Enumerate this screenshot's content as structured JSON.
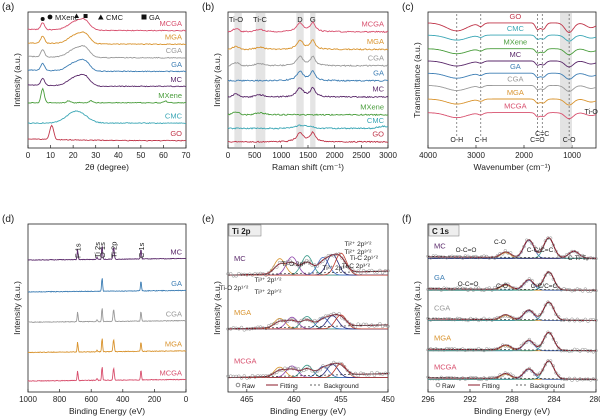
{
  "colors": {
    "GO": "#c0364a",
    "CMC": "#3aa6b5",
    "MXene": "#4a9d3c",
    "MC": "#5b2a6b",
    "GA": "#3f7fb5",
    "CGA": "#9a9a9a",
    "MGA": "#d9942f",
    "MCGA": "#d8506e",
    "raw": "#8a8a8a",
    "fit_main": "#8b1a2a",
    "bg": "#333333",
    "cmp1": "#d9952f",
    "cmp2": "#8e44ad",
    "cmp3": "#3a9a8a",
    "cmp4": "#3f6ec8",
    "cmp5": "#2b2b7a",
    "cmp6": "#c0392b"
  },
  "chart_data": [
    {
      "id": "a",
      "type": "line",
      "panel_label": "(a)",
      "xlabel": "2θ (degree)",
      "ylabel": "Intensity (a.u.)",
      "xlim": [
        0,
        70
      ],
      "xticks": [
        0,
        10,
        20,
        30,
        40,
        50,
        60,
        70
      ],
      "legend": [
        "MXene",
        "CMC",
        "GA"
      ],
      "series": [
        {
          "name": "MCGA",
          "base": 0.86
        },
        {
          "name": "MGA",
          "base": 0.76
        },
        {
          "name": "CGA",
          "base": 0.66
        },
        {
          "name": "GA",
          "base": 0.56
        },
        {
          "name": "MC",
          "base": 0.45
        },
        {
          "name": "MXene",
          "base": 0.33
        },
        {
          "name": "CMC",
          "base": 0.18
        },
        {
          "name": "GO",
          "base": 0.05
        }
      ],
      "peaks": {
        "MXene": [
          6.5
        ],
        "CMC": [
          21.5
        ],
        "GA": [
          25.5
        ],
        "GO": [
          10.5
        ]
      }
    },
    {
      "id": "b",
      "type": "line",
      "panel_label": "(b)",
      "xlabel": "Raman shift (cm⁻¹)",
      "ylabel": "Intensity (a.u.)",
      "xlim": [
        0,
        3000
      ],
      "xticks": [
        0,
        500,
        1000,
        1500,
        2000,
        2500,
        3000
      ],
      "band_labels": [
        "Ti-O",
        "Ti-C",
        "D",
        "G"
      ],
      "band_positions": [
        150,
        600,
        1350,
        1590
      ],
      "series": [
        {
          "name": "MCGA",
          "base": 0.85
        },
        {
          "name": "MGA",
          "base": 0.72
        },
        {
          "name": "CGA",
          "base": 0.6
        },
        {
          "name": "GA",
          "base": 0.49
        },
        {
          "name": "MC",
          "base": 0.37
        },
        {
          "name": "MXene",
          "base": 0.24
        },
        {
          "name": "CMC",
          "base": 0.14
        },
        {
          "name": "GO",
          "base": 0.04
        }
      ]
    },
    {
      "id": "c",
      "type": "line",
      "panel_label": "(c)",
      "xlabel": "Wavenumber (cm⁻¹)",
      "ylabel": "Transmittance (a.u.)",
      "xlim": [
        4000,
        500
      ],
      "xticks": [
        4000,
        3000,
        2000,
        1000
      ],
      "band_labels": [
        "O-H",
        "C-H",
        "C=O",
        "C=C",
        "C-O",
        "Ti-O"
      ],
      "band_positions": [
        3400,
        2900,
        1720,
        1620,
        1060,
        600
      ],
      "series": [
        {
          "name": "GO",
          "base": 0.92
        },
        {
          "name": "CMC",
          "base": 0.83
        },
        {
          "name": "MXene",
          "base": 0.73
        },
        {
          "name": "MC",
          "base": 0.64
        },
        {
          "name": "GA",
          "base": 0.55
        },
        {
          "name": "CGA",
          "base": 0.46
        },
        {
          "name": "MGA",
          "base": 0.36
        },
        {
          "name": "MCGA",
          "base": 0.26
        }
      ]
    },
    {
      "id": "d",
      "type": "line",
      "panel_label": "(d)",
      "xlabel": "Binding Energy (eV)",
      "ylabel": "Intensity (a.u.)",
      "xlim": [
        1000,
        0
      ],
      "xticks": [
        1000,
        800,
        600,
        400,
        200,
        0
      ],
      "peak_labels": [
        "F 1s",
        "Ti 2s",
        "O 1s",
        "Ti 2p",
        "C 1s"
      ],
      "peak_positions": [
        686,
        563,
        531,
        458,
        285
      ],
      "series": [
        {
          "name": "MC",
          "base": 0.76
        },
        {
          "name": "GA",
          "base": 0.57
        },
        {
          "name": "CGA",
          "base": 0.39
        },
        {
          "name": "MGA",
          "base": 0.21
        },
        {
          "name": "MCGA",
          "base": 0.04
        }
      ]
    },
    {
      "id": "e",
      "type": "line",
      "panel_label": "(e)",
      "title": "Ti 2p",
      "xlabel": "Binding Energy (eV)",
      "ylabel": "Intensity (a.u.)",
      "xlim": [
        467,
        450
      ],
      "xticks": [
        465,
        460,
        455,
        450
      ],
      "component_labels": [
        "Ti²⁺ 2p³ᐟ²",
        "Ti-O 2p³ᐟ²",
        "Ti²⁺ 2p¹ᐟ²",
        "Ti-C 2p¹ᐟ²",
        "Ti³⁺ 2p¹ᐟ²",
        "Ti-O 2p¹ᐟ²",
        "Ti³⁺ 2p³ᐟ²",
        "Ti²⁺ 2p³ᐟ²",
        "Ti-C 2p³ᐟ²"
      ],
      "series": [
        {
          "name": "MC",
          "base": 0.66
        },
        {
          "name": "MGA",
          "base": 0.34
        },
        {
          "name": "MCGA",
          "base": 0.05
        }
      ],
      "legend": [
        "Raw",
        "Fitting",
        "Background"
      ]
    },
    {
      "id": "f",
      "type": "line",
      "panel_label": "(f)",
      "title": "C 1s",
      "xlabel": "Binding Energy (eV)",
      "ylabel": "Intensity (a.u.)",
      "xlim": [
        296,
        280
      ],
      "xticks": [
        296,
        292,
        288,
        284,
        280
      ],
      "component_labels": [
        "C-O",
        "O-C=O",
        "C-C/C=C",
        "C-Ti-Tₓ",
        "O-C=O",
        "C-O",
        "C-C/C=C"
      ],
      "series": [
        {
          "name": "MC",
          "base": 0.76
        },
        {
          "name": "GA",
          "base": 0.57
        },
        {
          "name": "CGA",
          "base": 0.39
        },
        {
          "name": "MGA",
          "base": 0.21
        },
        {
          "name": "MCGA",
          "base": 0.04
        }
      ],
      "legend": [
        "Raw",
        "Fitting",
        "Background"
      ]
    }
  ]
}
